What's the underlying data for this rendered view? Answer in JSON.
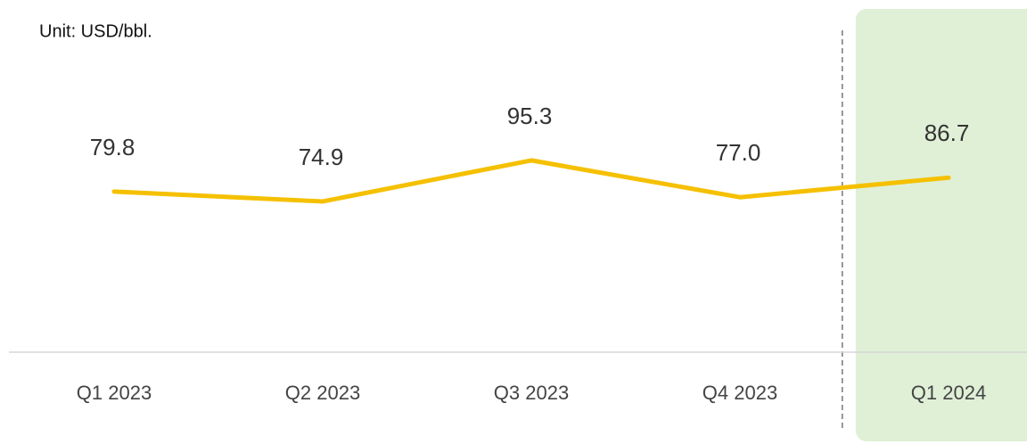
{
  "chart_data": {
    "type": "line",
    "subtitle": "Unit: USD/bbl.",
    "categories": [
      "Q1 2023",
      "Q2 2023",
      "Q3 2023",
      "Q4 2023",
      "Q1 2024"
    ],
    "values": [
      79.8,
      74.9,
      95.3,
      77.0,
      86.7
    ],
    "value_labels": [
      "79.8",
      "74.9",
      "95.3",
      "77.0",
      "86.7"
    ],
    "color": "#f5c000",
    "ylim": [
      0,
      175
    ]
  }
}
